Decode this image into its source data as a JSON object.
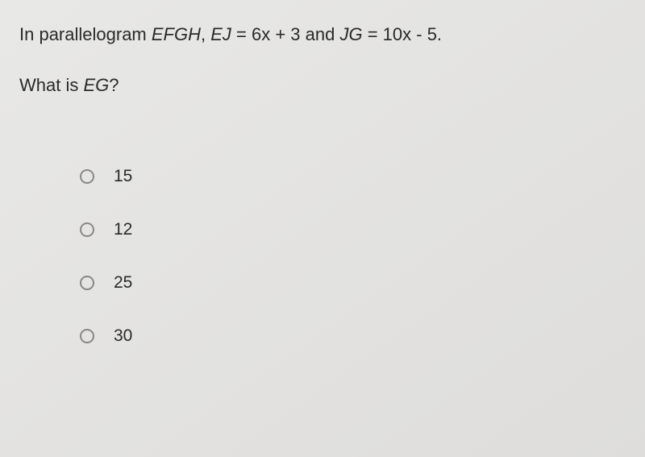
{
  "question": {
    "line1_part1": "In parallelogram ",
    "line1_italic1": "EFGH",
    "line1_part2": ", ",
    "line1_italic2": "EJ",
    "line1_part3": " = 6x + 3 and ",
    "line1_italic3": "JG",
    "line1_part4": " = 10x - 5.",
    "line2_part1": "What is ",
    "line2_italic1": "EG",
    "line2_part2": "?"
  },
  "options": [
    {
      "label": "15"
    },
    {
      "label": "12"
    },
    {
      "label": "25"
    },
    {
      "label": "30"
    }
  ],
  "styling": {
    "background_color": "#e5e4e2",
    "text_color": "#2a2a2a",
    "font_size_question": 22,
    "font_size_option": 21,
    "radio_border_color": "#888888",
    "radio_size": 18
  }
}
